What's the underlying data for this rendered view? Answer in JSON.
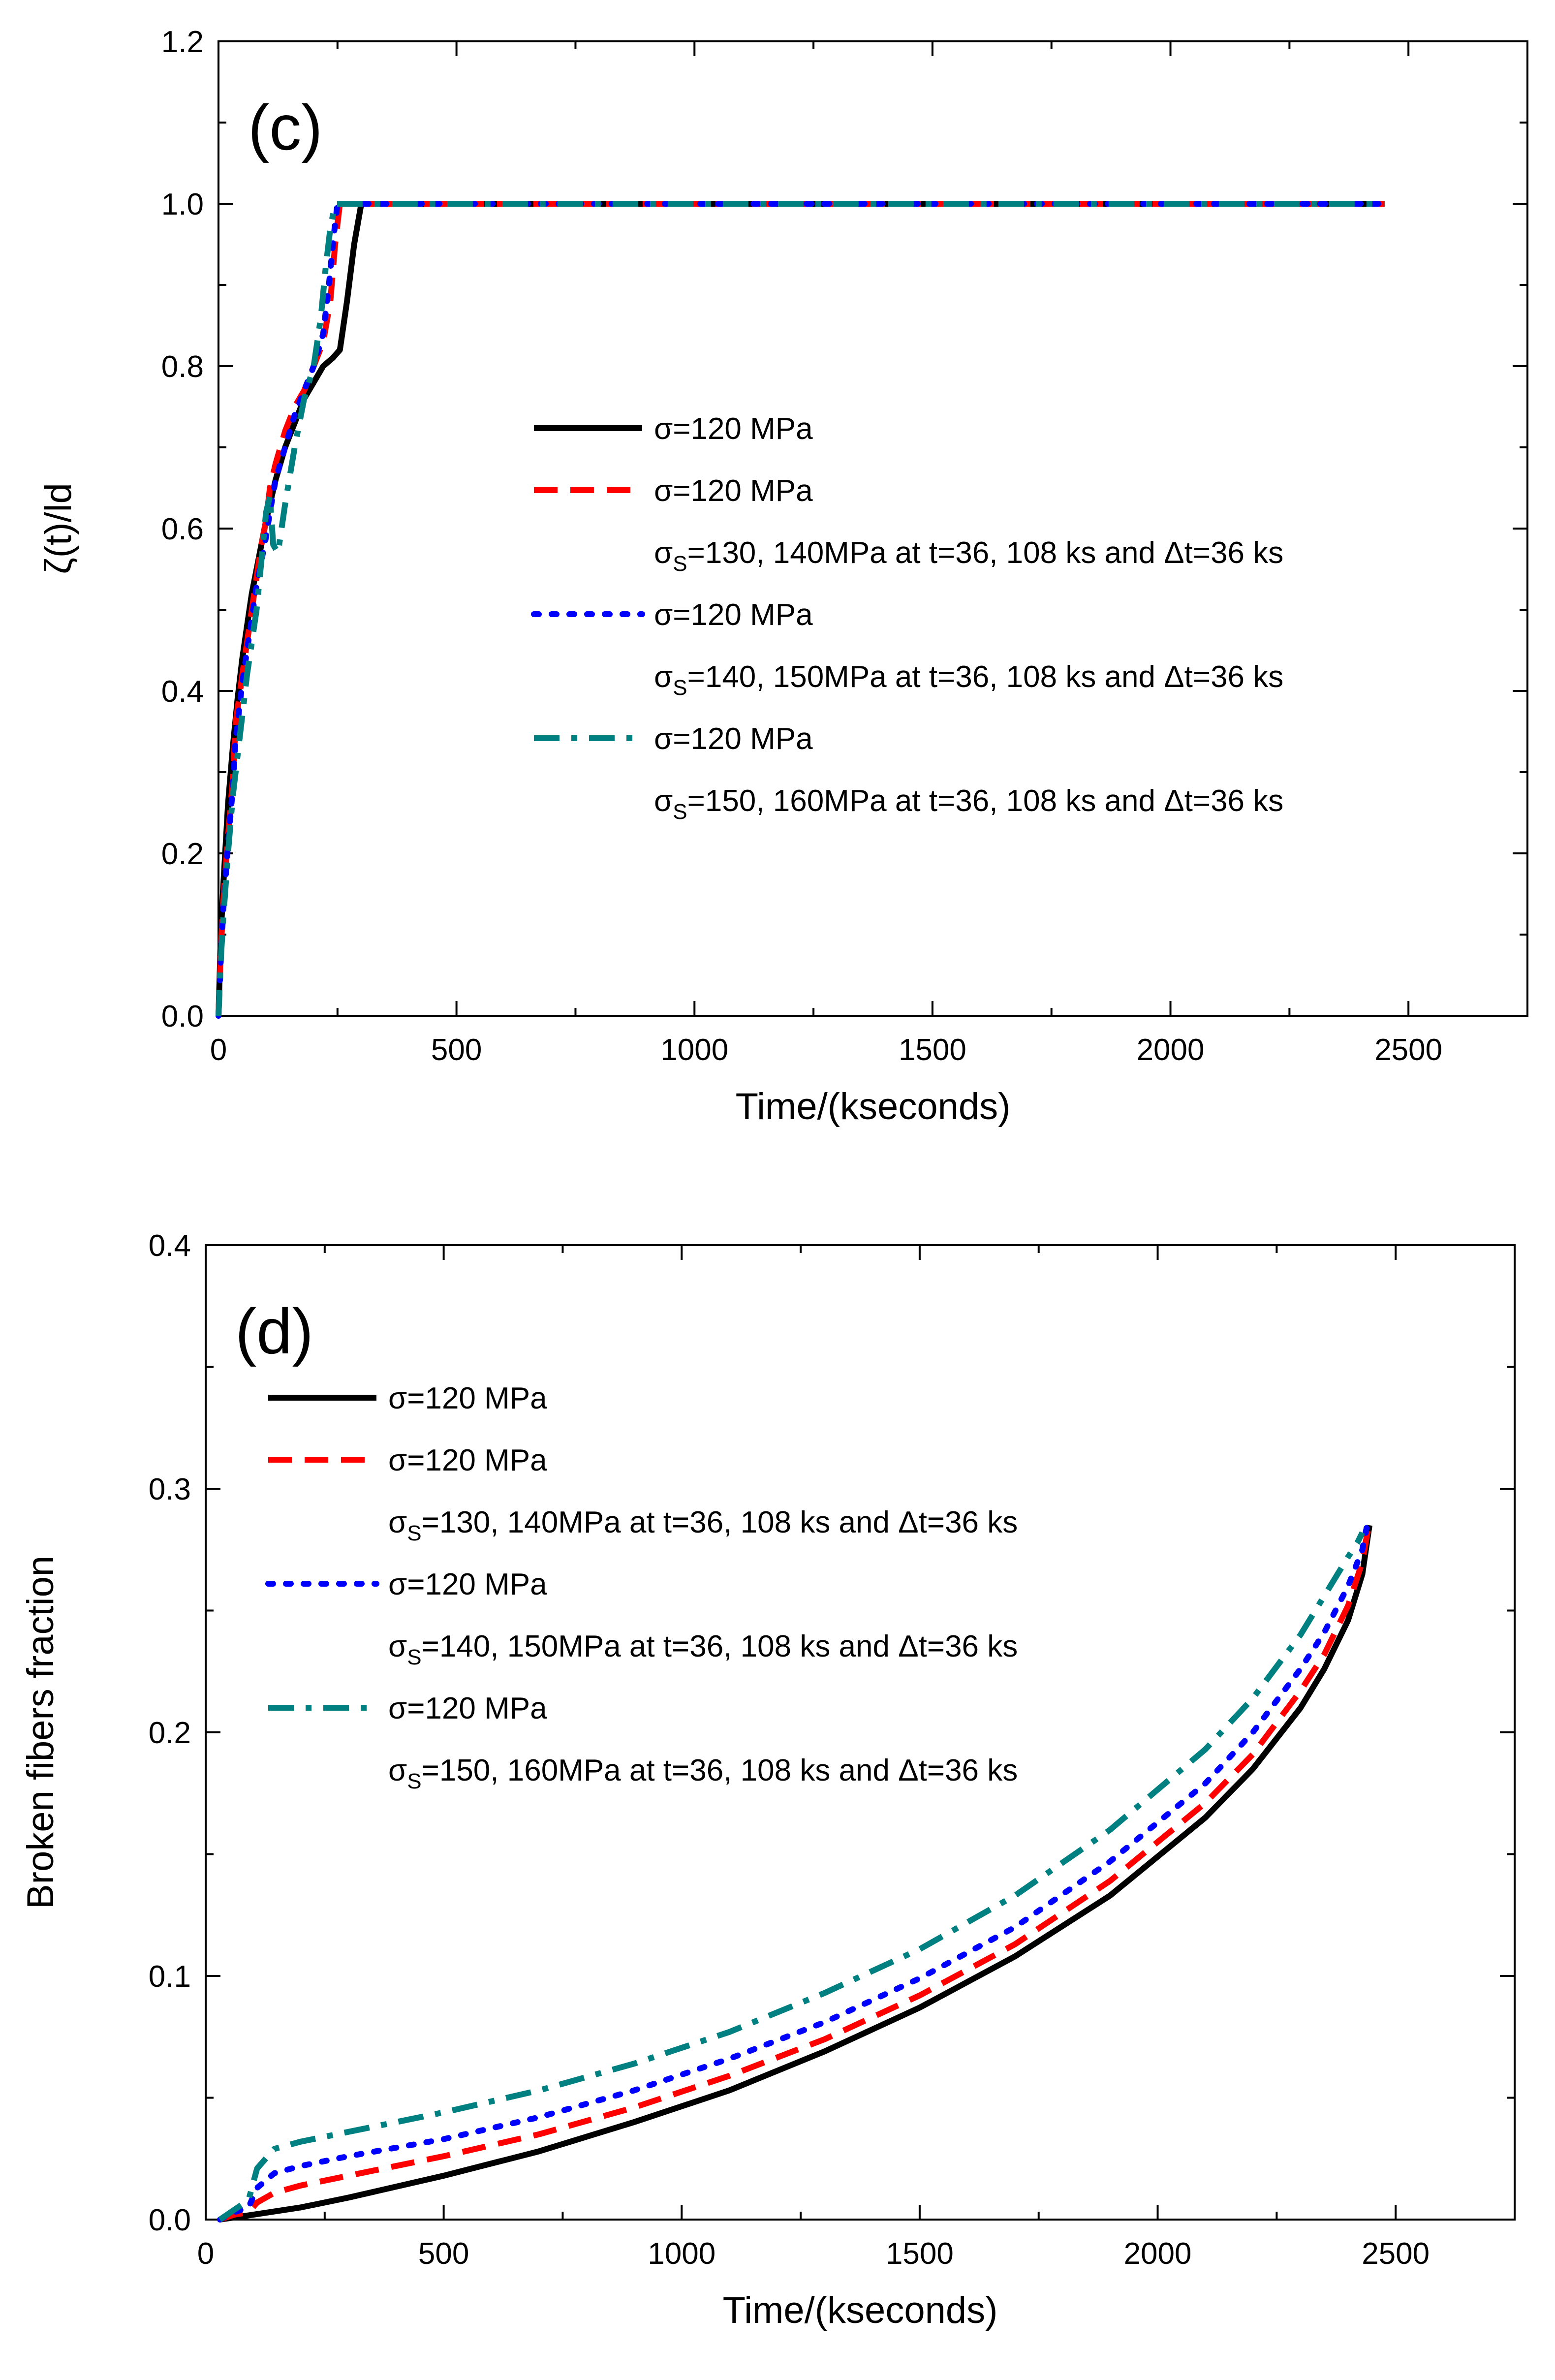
{
  "colors": {
    "black": "#000000",
    "red": "#ff0000",
    "blue": "#0000ff",
    "teal": "#008080"
  },
  "chart_data": [
    {
      "type": "line",
      "panel_label": "(c)",
      "xlabel": "Time/(kseconds)",
      "ylabel": "ζ(t)/ld",
      "xlim": [
        0,
        2750
      ],
      "ylim": [
        0,
        1.2
      ],
      "xticks": [
        "0",
        "500",
        "1000",
        "1500",
        "2000",
        "2500"
      ],
      "yticks": [
        "0.0",
        "0.2",
        "0.4",
        "0.6",
        "0.8",
        "1.0",
        "1.2"
      ],
      "legend_position": "center-right",
      "series": [
        {
          "legend": [
            {
              "main": "σ=120 MPa"
            }
          ],
          "color": "#000000",
          "dash": "solid",
          "x": [
            0,
            5,
            10,
            20,
            30,
            40,
            50,
            60,
            70,
            80,
            90,
            100,
            120,
            140,
            160,
            180,
            200,
            220,
            240,
            255,
            270,
            285,
            300,
            2450
          ],
          "y": [
            0.0,
            0.1,
            0.16,
            0.26,
            0.33,
            0.39,
            0.44,
            0.48,
            0.52,
            0.55,
            0.58,
            0.61,
            0.66,
            0.7,
            0.73,
            0.76,
            0.78,
            0.8,
            0.81,
            0.82,
            0.88,
            0.95,
            1.0,
            1.0
          ]
        },
        {
          "legend": [
            {
              "main": "σ=120 MPa"
            },
            {
              "sym": "σ",
              "sub": "S",
              "main": "=130, 140MPa at t=36, 108 ks and Δt=36 ks"
            }
          ],
          "color": "#ff0000",
          "dash": "dashed",
          "x": [
            0,
            5,
            10,
            20,
            30,
            36,
            50,
            60,
            70,
            80,
            90,
            100,
            108,
            120,
            140,
            160,
            180,
            200,
            220,
            235,
            245,
            255,
            2450
          ],
          "y": [
            0.0,
            0.08,
            0.14,
            0.22,
            0.29,
            0.36,
            0.42,
            0.46,
            0.5,
            0.54,
            0.58,
            0.61,
            0.65,
            0.68,
            0.72,
            0.75,
            0.77,
            0.8,
            0.83,
            0.88,
            0.95,
            1.0,
            1.0
          ]
        },
        {
          "legend": [
            {
              "main": "σ=120 MPa"
            },
            {
              "sym": "σ",
              "sub": "S",
              "main": "=140, 150MPa at t=36, 108 ks and Δt=36 ks"
            }
          ],
          "color": "#0000ff",
          "dash": "dotted",
          "x": [
            0,
            5,
            10,
            20,
            30,
            36,
            50,
            60,
            70,
            80,
            90,
            100,
            108,
            120,
            140,
            160,
            180,
            200,
            220,
            232,
            242,
            250,
            2450
          ],
          "y": [
            0.0,
            0.07,
            0.13,
            0.21,
            0.28,
            0.34,
            0.41,
            0.45,
            0.49,
            0.53,
            0.56,
            0.59,
            0.62,
            0.66,
            0.7,
            0.74,
            0.77,
            0.8,
            0.84,
            0.9,
            0.96,
            1.0,
            1.0
          ]
        },
        {
          "legend": [
            {
              "main": "σ=120 MPa"
            },
            {
              "sym": "σ",
              "sub": "S",
              "main": "=150, 160MPa at t=36, 108 ks and Δt=36 ks"
            }
          ],
          "color": "#008080",
          "dash": "dashdot",
          "x": [
            0,
            5,
            10,
            20,
            30,
            36,
            50,
            60,
            70,
            80,
            90,
            100,
            108,
            115,
            125,
            140,
            160,
            180,
            200,
            215,
            225,
            235,
            245,
            2450
          ],
          "y": [
            0.0,
            0.07,
            0.12,
            0.2,
            0.27,
            0.3,
            0.37,
            0.42,
            0.46,
            0.5,
            0.56,
            0.62,
            0.64,
            0.58,
            0.57,
            0.63,
            0.7,
            0.76,
            0.8,
            0.86,
            0.92,
            0.97,
            1.0,
            1.0
          ]
        }
      ]
    },
    {
      "type": "line",
      "panel_label": "(d)",
      "xlabel": "Time/(kseconds)",
      "ylabel": "Broken fibers fraction",
      "xlim": [
        0,
        2750
      ],
      "ylim": [
        0,
        0.4
      ],
      "xticks": [
        "0",
        "500",
        "1000",
        "1500",
        "2000",
        "2500"
      ],
      "yticks": [
        "0.0",
        "0.1",
        "0.2",
        "0.3",
        "0.4"
      ],
      "legend_position": "top-left",
      "series": [
        {
          "legend": [
            {
              "main": "σ=120 MPa"
            }
          ],
          "color": "#000000",
          "dash": "solid",
          "x": [
            30,
            100,
            200,
            300,
            500,
            700,
            900,
            1100,
            1300,
            1500,
            1700,
            1900,
            2100,
            2200,
            2300,
            2350,
            2400,
            2430,
            2445
          ],
          "y": [
            0.0,
            0.002,
            0.005,
            0.009,
            0.018,
            0.028,
            0.04,
            0.053,
            0.069,
            0.087,
            0.108,
            0.133,
            0.165,
            0.185,
            0.21,
            0.226,
            0.246,
            0.265,
            0.285
          ]
        },
        {
          "legend": [
            {
              "main": "σ=120 MPa"
            },
            {
              "sym": "σ",
              "sub": "S",
              "main": "=130, 140MPa at t=36, 108 ks and Δt=36 ks"
            }
          ],
          "color": "#ff0000",
          "dash": "dashed",
          "x": [
            30,
            60,
            90,
            108,
            144,
            200,
            300,
            500,
            700,
            900,
            1100,
            1300,
            1500,
            1700,
            1900,
            2100,
            2200,
            2300,
            2350,
            2400,
            2430,
            2445
          ],
          "y": [
            0.0,
            0.002,
            0.003,
            0.007,
            0.011,
            0.014,
            0.018,
            0.026,
            0.035,
            0.046,
            0.059,
            0.074,
            0.092,
            0.113,
            0.139,
            0.171,
            0.191,
            0.217,
            0.232,
            0.252,
            0.27,
            0.287
          ]
        },
        {
          "legend": [
            {
              "main": "σ=120 MPa"
            },
            {
              "sym": "σ",
              "sub": "S",
              "main": "=140, 150MPa at t=36, 108 ks and Δt=36 ks"
            }
          ],
          "color": "#0000ff",
          "dash": "dotted",
          "x": [
            30,
            60,
            90,
            108,
            144,
            200,
            300,
            500,
            700,
            900,
            1100,
            1300,
            1500,
            1700,
            1900,
            2100,
            2200,
            2300,
            2350,
            2400,
            2430,
            2440
          ],
          "y": [
            0.0,
            0.003,
            0.005,
            0.013,
            0.019,
            0.022,
            0.026,
            0.033,
            0.042,
            0.053,
            0.066,
            0.081,
            0.099,
            0.12,
            0.147,
            0.179,
            0.2,
            0.226,
            0.241,
            0.26,
            0.275,
            0.285
          ]
        },
        {
          "legend": [
            {
              "main": "σ=120 MPa"
            },
            {
              "sym": "σ",
              "sub": "S",
              "main": "=150, 160MPa at t=36, 108 ks and Δt=36 ks"
            }
          ],
          "color": "#008080",
          "dash": "dashdot",
          "x": [
            30,
            60,
            90,
            108,
            144,
            200,
            300,
            500,
            700,
            900,
            1100,
            1300,
            1500,
            1700,
            1900,
            2100,
            2200,
            2300,
            2350,
            2400,
            2420,
            2430
          ],
          "y": [
            0.0,
            0.004,
            0.008,
            0.021,
            0.029,
            0.032,
            0.036,
            0.044,
            0.053,
            0.064,
            0.077,
            0.093,
            0.111,
            0.133,
            0.16,
            0.193,
            0.214,
            0.24,
            0.256,
            0.272,
            0.278,
            0.282
          ]
        }
      ]
    }
  ]
}
